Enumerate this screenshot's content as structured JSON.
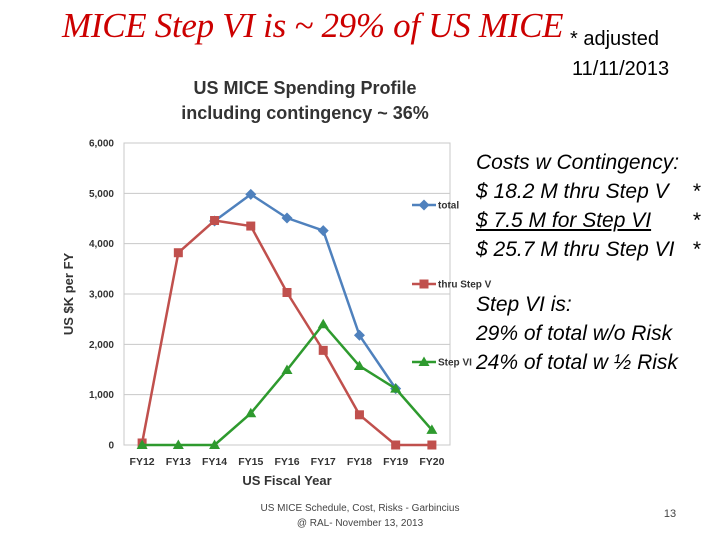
{
  "slide": {
    "title": "MICE Step VI is ~ 29% of US MICE",
    "note_line1": "* adjusted",
    "note_line2": "11/11/2013",
    "costs_lines": [
      "Costs w Contingency:",
      "$ 18.2 M thru Step V",
      "$   7.5 M for Step VI",
      "$ 25.7 M thru Step VI"
    ],
    "costs_star": "*",
    "step_lines": [
      "Step VI is:",
      "29% of total w/o Risk",
      "24% of total w ½ Risk"
    ],
    "footer_line1": "US MICE Schedule, Cost, Risks - Garbincius",
    "footer_line2": "@ RAL-  November 13, 2013",
    "page_number": "13"
  },
  "chart_data": {
    "type": "line",
    "title_line1": "US MICE Spending Profile",
    "title_line2": "including contingency ~ 36%",
    "xlabel": "US Fiscal Year",
    "ylabel": "US $K per FY",
    "ylim": [
      0,
      6000
    ],
    "yticks": [
      0,
      1000,
      2000,
      3000,
      4000,
      5000,
      6000
    ],
    "ytick_labels": [
      "0",
      "1,000",
      "2,000",
      "3,000",
      "4,000",
      "5,000",
      "6,000"
    ],
    "categories": [
      "FY12",
      "FY13",
      "FY14",
      "FY15",
      "FY16",
      "FY17",
      "FY18",
      "FY19",
      "FY20"
    ],
    "grid": "horizontal",
    "series": [
      {
        "name": "total",
        "color": "#4f81bd",
        "marker": "diamond",
        "values": [
          null,
          null,
          4450,
          4980,
          4510,
          4260,
          2180,
          1120,
          null
        ]
      },
      {
        "name": "thru Step V",
        "color": "#c0504d",
        "marker": "square",
        "values": [
          40,
          3820,
          4460,
          4350,
          3030,
          1880,
          600,
          0,
          0
        ]
      },
      {
        "name": "Step VI",
        "color": "#2e9a2e",
        "marker": "triangle",
        "values": [
          0,
          0,
          0,
          630,
          1490,
          2400,
          1570,
          1120,
          300
        ]
      }
    ]
  }
}
